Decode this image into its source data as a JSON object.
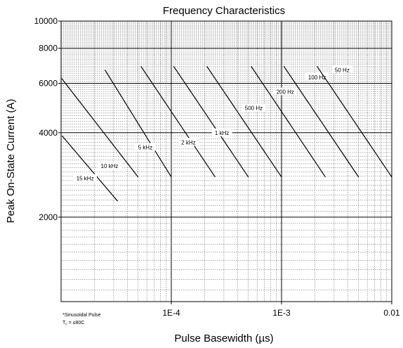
{
  "chart_data": {
    "type": "line",
    "title": "Frequency Characteristics",
    "xlabel": "Pulse Basewidth (µs)",
    "ylabel": "Peak On-State Current (A)",
    "x_scale": "log",
    "y_scale": "log",
    "xlim": [
      1e-05,
      0.01
    ],
    "ylim": [
      1000,
      10000
    ],
    "x_ticks": [
      {
        "value": 0.0001,
        "label": "1E-4"
      },
      {
        "value": 0.001,
        "label": "1E-3"
      },
      {
        "value": 0.01,
        "label": "0.01"
      }
    ],
    "y_ticks": [
      {
        "value": 2000,
        "label": "2000"
      },
      {
        "value": 4000,
        "label": "4000"
      },
      {
        "value": 6000,
        "label": "6000"
      },
      {
        "value": 8000,
        "label": "8000"
      },
      {
        "value": 10000,
        "label": "10000"
      }
    ],
    "grid": true,
    "note_line1": "*Sinusoidal Pulse",
    "note_line2_prefix": "T",
    "note_line2_sub": "c",
    "note_line2_suffix": " = ≤80C",
    "series": [
      {
        "name": "15 kHz",
        "x": [
          1.02e-05,
          3.26e-05
        ],
        "y": [
          3900,
          2280
        ],
        "label_x": 1.65e-05,
        "label_y": 2750
      },
      {
        "name": "10 kHz",
        "x": [
          1.01e-05,
          5e-05
        ],
        "y": [
          6250,
          2780
        ],
        "label_x": 2.75e-05,
        "label_y": 3050
      },
      {
        "name": "5 kHz",
        "x": [
          2.5e-05,
          0.0001
        ],
        "y": [
          6700,
          2780
        ],
        "label_x": 5.8e-05,
        "label_y": 3550
      },
      {
        "name": "2 kHz",
        "x": [
          5.3e-05,
          0.00025
        ],
        "y": [
          6900,
          2780
        ],
        "label_x": 0.000143,
        "label_y": 3700
      },
      {
        "name": "1 kHz",
        "x": [
          0.000105,
          0.0005
        ],
        "y": [
          6900,
          2780
        ],
        "label_x": 0.000288,
        "label_y": 4000
      },
      {
        "name": "500 Hz",
        "x": [
          0.00021,
          0.001
        ],
        "y": [
          6900,
          2780
        ],
        "label_x": 0.00056,
        "label_y": 4900
      },
      {
        "name": "200 Hz",
        "x": [
          0.00053,
          0.0025
        ],
        "y": [
          6900,
          2780
        ],
        "label_x": 0.00108,
        "label_y": 5600
      },
      {
        "name": "100 Hz",
        "x": [
          0.00105,
          0.005
        ],
        "y": [
          6900,
          2780
        ],
        "label_x": 0.0021,
        "label_y": 6300
      },
      {
        "name": "50 Hz",
        "x": [
          0.0021,
          0.01
        ],
        "y": [
          6900,
          2780
        ],
        "label_x": 0.00355,
        "label_y": 6700
      }
    ]
  }
}
